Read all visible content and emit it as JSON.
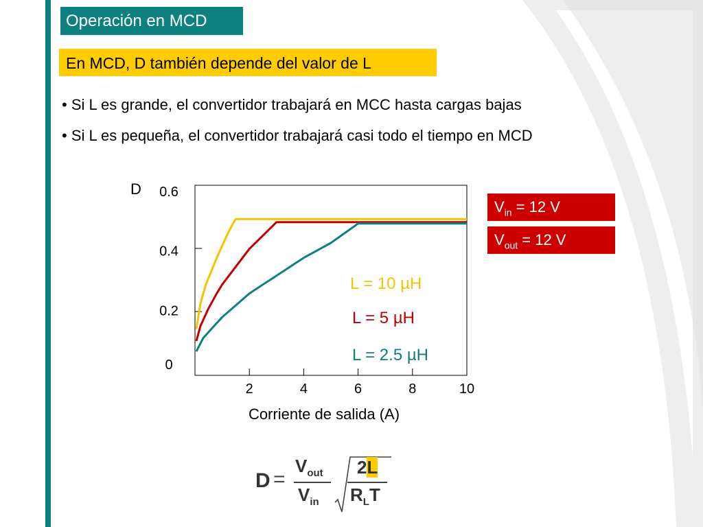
{
  "slide": {
    "title": "Operación en MCD",
    "subtitle": "En MCD, D también depende del valor de L",
    "bullets": [
      "• Si L es grande, el convertidor trabajará en MCC hasta cargas bajas",
      "• Si L es pequeña, el convertidor trabajará casi todo el tiempo en MCD"
    ],
    "params": [
      {
        "symbol": "V",
        "sub": "in",
        "rest": " = 12 V"
      },
      {
        "symbol": "V",
        "sub": "out",
        "rest": " = 12 V"
      }
    ],
    "colors": {
      "teal": "#0f8080",
      "yellow": "#ffcc00",
      "red": "#cc0000"
    }
  },
  "chart_data": {
    "type": "line",
    "ylabel": "D",
    "xlabel": "Corriente de salida (A)",
    "xlim": [
      0,
      10
    ],
    "ylim": [
      0,
      0.6
    ],
    "x_ticks": [
      2,
      4,
      6,
      8,
      10
    ],
    "y_tick_labels": [
      "0",
      "0.2",
      "0.4",
      "0.6"
    ],
    "y_tick_values": [
      0,
      0.2,
      0.4,
      0.6
    ],
    "grid": false,
    "series": [
      {
        "name": "L = 10 µH",
        "color": "#f5c400",
        "x": [
          0.05,
          0.2,
          0.4,
          0.6,
          0.8,
          1.0,
          1.2,
          1.4,
          1.5,
          10
        ],
        "y": [
          0.13,
          0.215,
          0.28,
          0.325,
          0.37,
          0.41,
          0.45,
          0.485,
          0.5,
          0.5
        ]
      },
      {
        "name": "L = 5 µH",
        "color": "#c00000",
        "x": [
          0.05,
          0.2,
          0.5,
          0.8,
          1.0,
          1.5,
          2.0,
          2.5,
          3.0,
          10
        ],
        "y": [
          0.09,
          0.14,
          0.2,
          0.25,
          0.28,
          0.34,
          0.4,
          0.445,
          0.49,
          0.49
        ]
      },
      {
        "name": "L = 2.5 µH",
        "color": "#0f8080",
        "x": [
          0.05,
          0.3,
          0.7,
          1.0,
          1.5,
          2.0,
          3.0,
          4.0,
          5.0,
          6.0,
          10
        ],
        "y": [
          0.055,
          0.1,
          0.14,
          0.17,
          0.21,
          0.25,
          0.31,
          0.37,
          0.42,
          0.485,
          0.485
        ]
      }
    ],
    "legend_labels": [
      {
        "text": "L = 10 µH",
        "color": "#f5c400"
      },
      {
        "text": "L = 5 µH",
        "color": "#c00000"
      },
      {
        "text": "L = 2.5 µH",
        "color": "#0f8080"
      }
    ]
  },
  "formula": {
    "lhs": "D",
    "eq": "=",
    "num_V": "V",
    "num_sub": "out",
    "den_V": "V",
    "den_sub": "in",
    "num2_a": "2",
    "num2_b": "L",
    "den2_R": "R",
    "den2_sub": "L",
    "den2_T": "T"
  }
}
